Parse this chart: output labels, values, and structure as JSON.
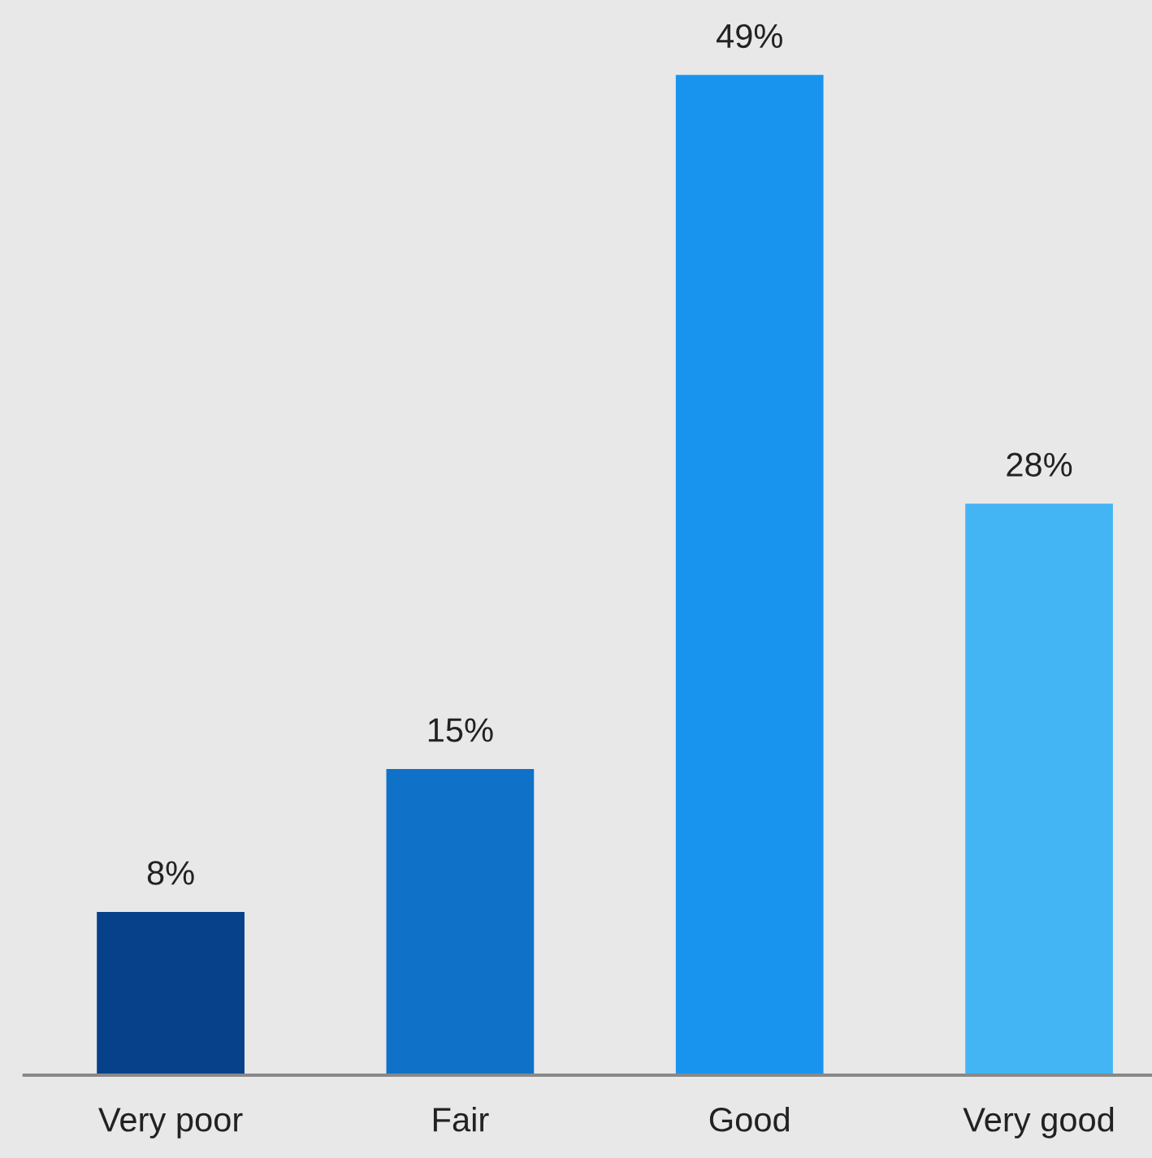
{
  "chart_data": {
    "type": "bar",
    "categories": [
      "Very poor",
      "Fair",
      "Good",
      "Very good"
    ],
    "values": [
      8,
      15,
      49,
      28
    ],
    "colors": [
      "#07418a",
      "#1071c8",
      "#1894ef",
      "#44b5f4"
    ],
    "value_labels": [
      "8%",
      "15%",
      "49%",
      "28%"
    ],
    "tick_labels": "x",
    "grid": false,
    "legend": false
  }
}
